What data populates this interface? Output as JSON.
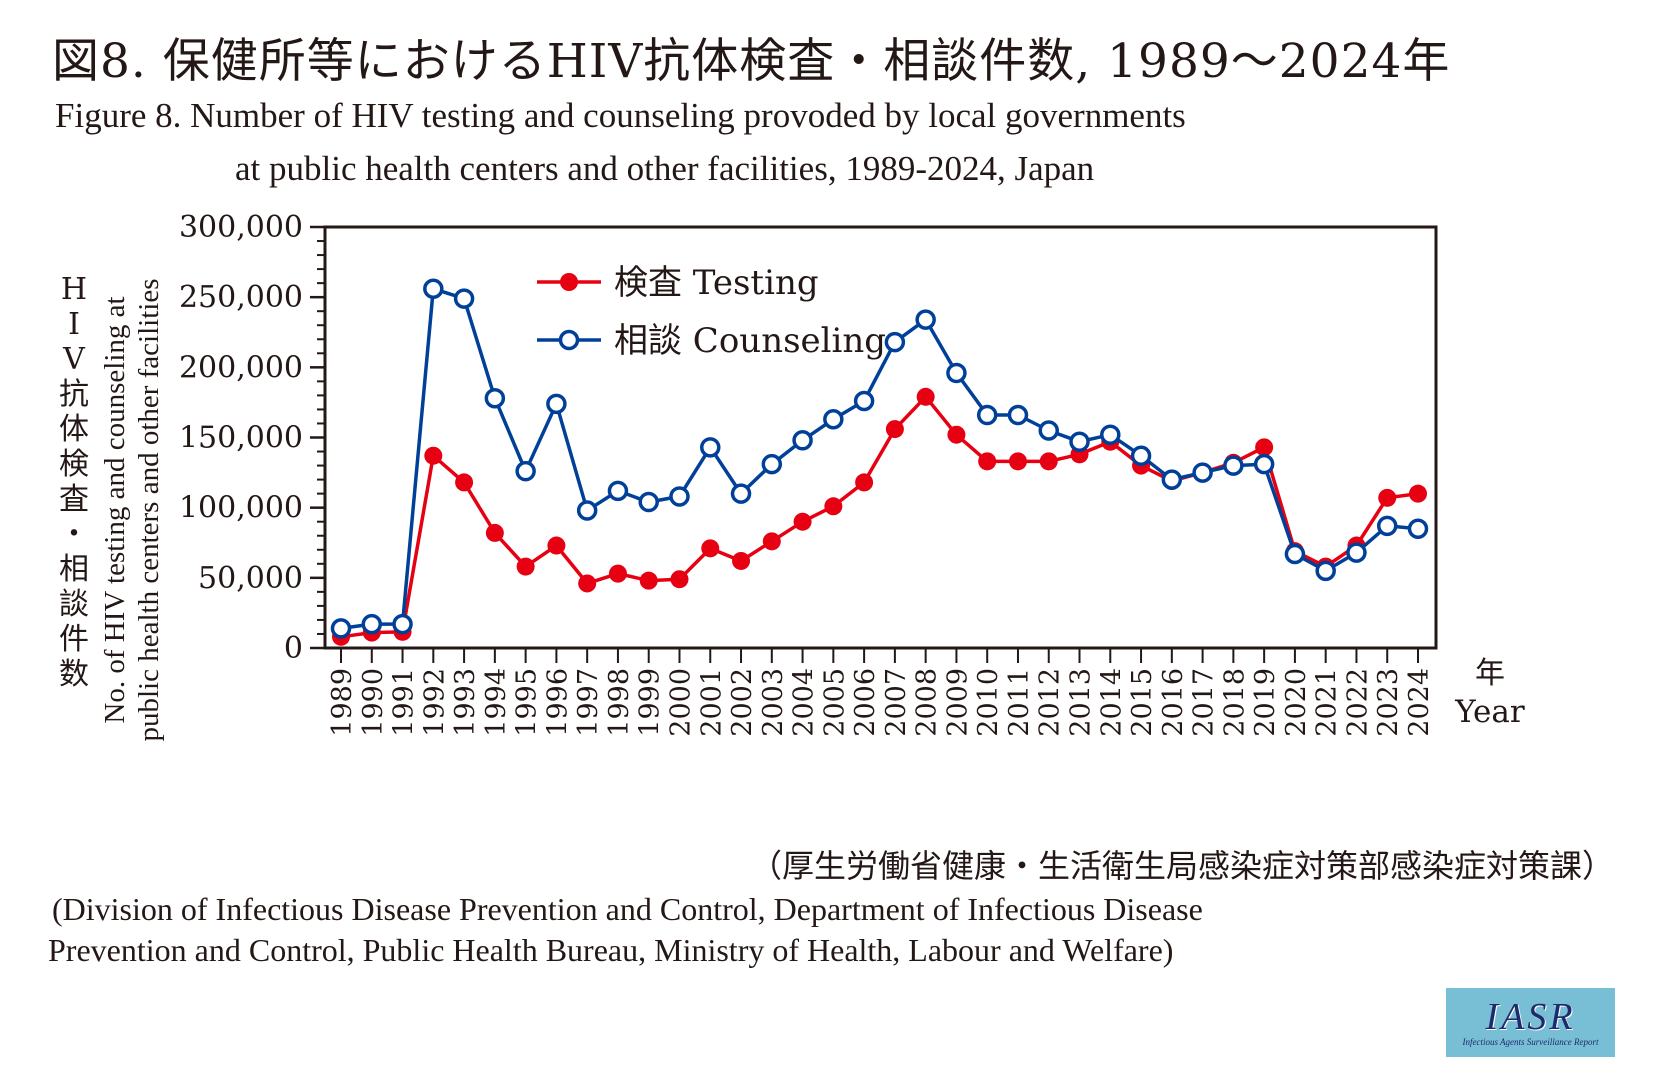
{
  "header": {
    "title_jp": "図8. 保健所等におけるHIV抗体検査・相談件数, 1989～2024年",
    "title_en_line1": "Figure 8. Number of HIV testing and counseling provoded by local governments",
    "title_en_line2": "at public health centers and other facilities, 1989-2024, Japan"
  },
  "source": {
    "jp": "（厚生労働省健康・生活衛生局感染症対策部感染症対策課）",
    "en_line1": "(Division of Infectious Disease Prevention and Control, Department of Infectious Disease",
    "en_line2": "Prevention and Control, Public Health Bureau, Ministry of Health, Labour and Welfare)"
  },
  "logo": {
    "main": "IASR",
    "sub": "Infectious Agents Surveillance Report"
  },
  "chart_data": {
    "type": "line",
    "title": "Number of HIV testing and counseling provoded by local governments at public health centers and other facilities, 1989-2024, Japan",
    "ylabel_jp": [
      "H",
      "I",
      "V",
      "抗",
      "体",
      "検",
      "査",
      "・",
      "相",
      "談",
      "件",
      "数"
    ],
    "ylabel_en_line1": "No. of HIV testing and counseling at",
    "ylabel_en_line2": "public health centers and other facilities",
    "xlabel_jp": "年",
    "xlabel_en": "Year",
    "ylim": [
      0,
      300000
    ],
    "yticks": [
      0,
      50000,
      100000,
      150000,
      200000,
      250000,
      300000
    ],
    "ytick_labels": [
      "0",
      "50,000",
      "100,000",
      "150,000",
      "200,000",
      "250,000",
      "300,000"
    ],
    "y_minor_step": 10000,
    "grid": false,
    "legend_position": "top-left",
    "x": [
      "1989",
      "1990",
      "1991",
      "1992",
      "1993",
      "1994",
      "1995",
      "1996",
      "1997",
      "1998",
      "1999",
      "2000",
      "2001",
      "2002",
      "2003",
      "2004",
      "2005",
      "2006",
      "2007",
      "2008",
      "2009",
      "2010",
      "2011",
      "2012",
      "2013",
      "2014",
      "2015",
      "2016",
      "2017",
      "2018",
      "2019",
      "2020",
      "2021",
      "2022",
      "2023",
      "2024"
    ],
    "series": [
      {
        "name": "検査 Testing",
        "color": "#e60012",
        "marker": "filled-circle",
        "values": [
          8000,
          11000,
          11500,
          137000,
          118000,
          82000,
          58000,
          73000,
          46000,
          53000,
          48000,
          49000,
          71000,
          62000,
          76000,
          90000,
          101000,
          118000,
          156000,
          179000,
          152000,
          133000,
          133000,
          133000,
          138000,
          147000,
          130000,
          119000,
          125000,
          132000,
          143000,
          69000,
          58000,
          73000,
          107000,
          110000
        ]
      },
      {
        "name": "相談 Counseling",
        "color": "#004098",
        "marker": "open-circle",
        "values": [
          14000,
          17000,
          17000,
          256000,
          249000,
          178000,
          126000,
          174000,
          98000,
          112000,
          104000,
          108000,
          143000,
          110000,
          131000,
          148000,
          163000,
          176000,
          218000,
          234000,
          196000,
          166000,
          166000,
          155000,
          147000,
          152000,
          137000,
          120000,
          125000,
          130000,
          131000,
          67000,
          55000,
          68000,
          87000,
          85000
        ]
      }
    ]
  }
}
